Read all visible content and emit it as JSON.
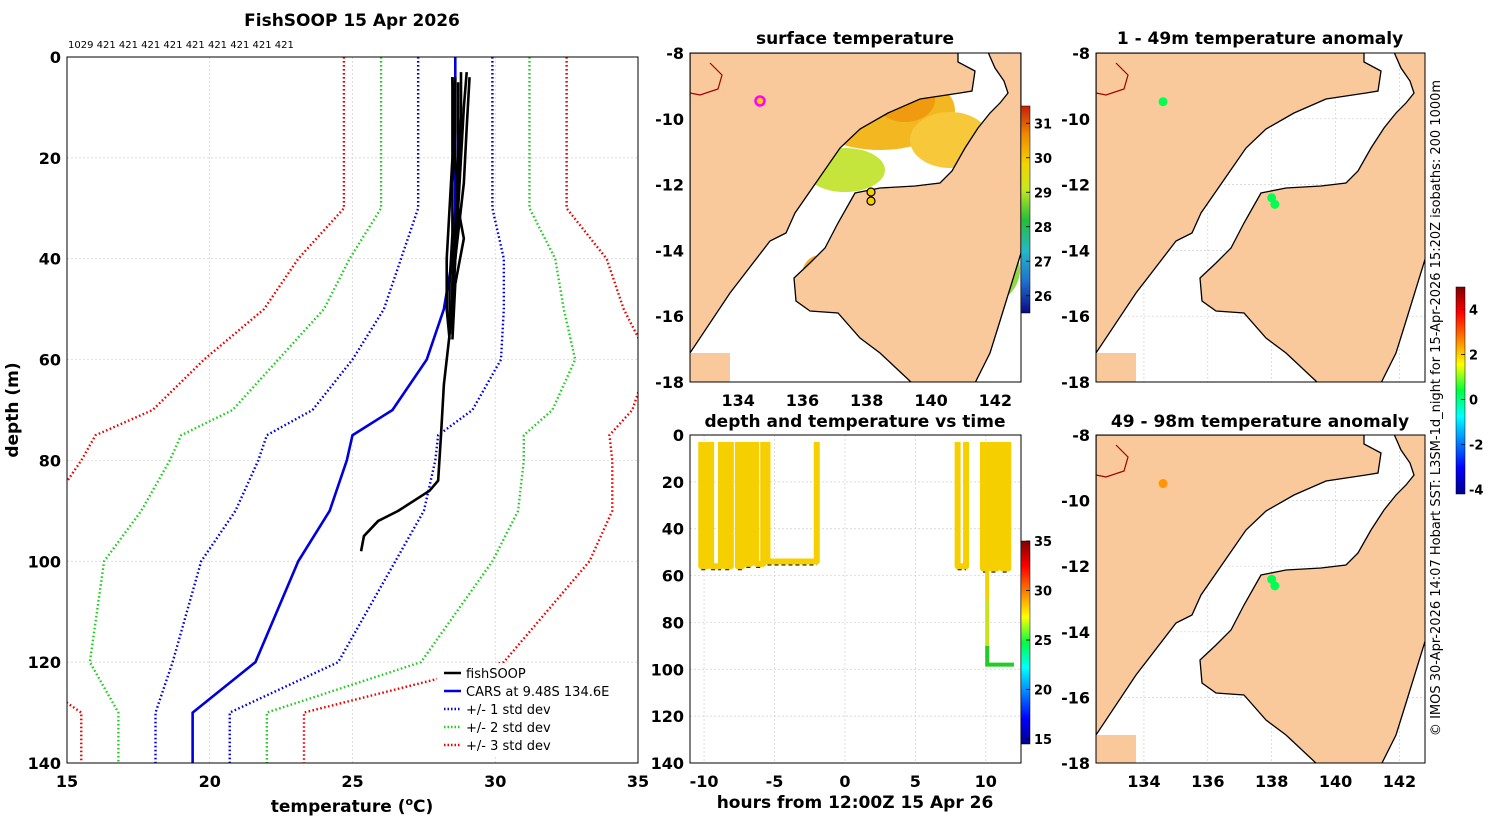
{
  "main_title": "FishSOOP 15 Apr 2026",
  "counts_line": "1029 421 421 421 421 421 421 421 421 421",
  "credit": "© IMOS 30-Apr-2026 14:07 Hobart SST: L3SM-1d_night for 15-Apr-2026 15:20Z isobaths: 200  1000m",
  "colors": {
    "land": "#f9c89b",
    "fishsoop": "#000000",
    "cars": "#0000dd",
    "std1": "#0000dd",
    "std2": "#22cc22",
    "std3": "#ee0000",
    "track_marker": "#f5cf00",
    "anomaly_marker": "#33cc33"
  },
  "chart_data": [
    {
      "id": "profile",
      "type": "line",
      "title": "FishSOOP 15 Apr 2026",
      "xlabel": "temperature (°C)",
      "ylabel": "depth (m)",
      "xlim": [
        15,
        35
      ],
      "ylim": [
        0,
        140
      ],
      "y_reversed": true,
      "xticks": [
        15,
        20,
        25,
        30,
        35
      ],
      "yticks": [
        0,
        20,
        40,
        60,
        80,
        100,
        120,
        140
      ],
      "grid": true,
      "legend_position": "bottom-right",
      "legend": [
        "fishSOOP",
        "CARS at 9.48S 134.6E",
        "+/- 1 std dev",
        "+/- 2 std dev",
        "+/- 3 std dev"
      ],
      "depths": [
        0,
        10,
        20,
        30,
        40,
        50,
        60,
        70,
        75,
        80,
        90,
        100,
        120,
        130,
        140
      ],
      "cars_mean": [
        28.6,
        28.6,
        28.6,
        28.6,
        28.5,
        28.2,
        27.6,
        26.4,
        25.0,
        24.8,
        24.2,
        23.1,
        21.6,
        19.4,
        19.4
      ],
      "std_half_widths": [
        1.3,
        1.3,
        1.3,
        1.3,
        1.8,
        2.1,
        2.6,
        2.8,
        3.0,
        3.1,
        3.3,
        3.4,
        2.9,
        1.3,
        1.3
      ],
      "fishsoop_casts": [
        {
          "t": [
            28.5,
            28.5,
            28.5,
            28.4,
            28.3,
            28.3,
            28.4
          ],
          "d": [
            4,
            10,
            20,
            30,
            40,
            50,
            56
          ]
        },
        {
          "t": [
            28.6,
            28.6,
            28.5,
            28.5,
            28.4,
            28.4
          ],
          "d": [
            4,
            15,
            25,
            35,
            45,
            55
          ]
        },
        {
          "t": [
            28.8,
            28.8,
            28.7,
            28.6,
            28.5,
            28.5
          ],
          "d": [
            3,
            12,
            22,
            34,
            44,
            54
          ]
        },
        {
          "t": [
            29.0,
            28.9,
            28.8,
            28.7,
            28.6,
            28.5
          ],
          "d": [
            3,
            10,
            20,
            30,
            40,
            52
          ]
        },
        {
          "t": [
            29.1,
            29.0,
            28.9,
            28.7,
            28.5,
            28.5
          ],
          "d": [
            4,
            14,
            25,
            35,
            45,
            55
          ]
        },
        {
          "t": [
            28.5,
            28.6,
            28.7,
            28.8,
            28.9,
            28.6,
            28.5
          ],
          "d": [
            4,
            20,
            30,
            33,
            36,
            45,
            56
          ]
        },
        {
          "t": [
            28.7,
            28.7,
            28.6,
            28.4,
            28.2,
            28.1,
            28.0,
            27.7,
            26.6,
            25.9,
            25.4,
            25.3
          ],
          "d": [
            5,
            20,
            40,
            55,
            65,
            75,
            84,
            86,
            90,
            92,
            95,
            98
          ]
        }
      ]
    },
    {
      "id": "sst_map",
      "type": "heatmap",
      "title": "surface temperature",
      "xlim": [
        132.5,
        142.8
      ],
      "ylim": [
        -18,
        -8
      ],
      "xticks": [
        134,
        136,
        138,
        140,
        142
      ],
      "yticks": [
        -8,
        -10,
        -12,
        -14,
        -16,
        -18
      ],
      "colorbar": {
        "min": 25.5,
        "max": 31.5,
        "ticks": [
          26,
          27,
          28,
          29,
          30,
          31
        ]
      },
      "markers": [
        {
          "lon": 134.6,
          "lat": -9.48,
          "style": "magenta ring"
        },
        {
          "lon": 138.0,
          "lat": -12.3,
          "style": "black ring"
        },
        {
          "lon": 138.0,
          "lat": -12.55,
          "style": "black ring"
        }
      ]
    },
    {
      "id": "depth_time",
      "type": "scatter",
      "title": "depth and temperature vs time",
      "xlabel": "hours from 12:00Z 15 Apr 26",
      "xlim": [
        -11,
        12.5
      ],
      "ylim": [
        0,
        140
      ],
      "y_reversed": true,
      "xticks": [
        -10,
        -5,
        0,
        5,
        10
      ],
      "yticks": [
        0,
        20,
        40,
        60,
        80,
        100,
        120,
        140
      ],
      "colorbar": {
        "min": 14.5,
        "max": 35,
        "ticks": [
          15,
          20,
          25,
          30,
          35
        ]
      },
      "casts": [
        {
          "t0": -10.2,
          "t1": -9.8,
          "bottom": 56
        },
        {
          "t0": -9.5,
          "t1": -8.8,
          "bottom": 56
        },
        {
          "t0": -8.5,
          "t1": -8.1,
          "bottom": 56
        },
        {
          "t0": -7.6,
          "t1": -7.3,
          "bottom": 56
        },
        {
          "t0": -7.0,
          "t1": -6.7,
          "bottom": 55
        },
        {
          "t0": -6.3,
          "t1": -5.8,
          "bottom": 55
        },
        {
          "t0": -5.5,
          "t1": -2.0,
          "bottom": 54
        },
        {
          "t0": 8.0,
          "t1": 8.6,
          "bottom": 56
        },
        {
          "t0": 9.8,
          "t1": 10.1,
          "bottom": 57
        },
        {
          "t0": 10.4,
          "t1": 10.8,
          "bottom": 57
        },
        {
          "t0": 11.2,
          "t1": 11.6,
          "bottom": 57
        }
      ],
      "deep_cast": {
        "t0": 10.1,
        "t1": 12.0,
        "bottom": 98
      }
    },
    {
      "id": "anom_upper",
      "type": "scatter",
      "title": "1 - 49m temperature anomaly",
      "xlim": [
        132.5,
        142.8
      ],
      "ylim": [
        -18,
        -8
      ],
      "yticks": [
        -8,
        -10,
        -12,
        -14,
        -16,
        -18
      ],
      "markers": [
        {
          "lon": 134.6,
          "lat": -9.48,
          "anomaly": 0.3
        },
        {
          "lon": 138.0,
          "lat": -12.4,
          "anomaly": 0.3
        },
        {
          "lon": 138.1,
          "lat": -12.6,
          "anomaly": 0.3
        }
      ]
    },
    {
      "id": "anom_lower",
      "type": "scatter",
      "title": "49 - 98m temperature anomaly",
      "xlim": [
        132.5,
        142.8
      ],
      "ylim": [
        -18,
        -8
      ],
      "xticks": [
        134,
        136,
        138,
        140,
        142
      ],
      "yticks": [
        -8,
        -10,
        -12,
        -14,
        -16,
        -18
      ],
      "colorbar": {
        "min": -4.2,
        "max": 5.0,
        "ticks": [
          -4,
          -2,
          0,
          2,
          4
        ]
      },
      "markers": [
        {
          "lon": 134.6,
          "lat": -9.48,
          "anomaly": 2.5
        },
        {
          "lon": 138.0,
          "lat": -12.4,
          "anomaly": 0.3
        },
        {
          "lon": 138.1,
          "lat": -12.6,
          "anomaly": 0.3
        }
      ]
    }
  ]
}
